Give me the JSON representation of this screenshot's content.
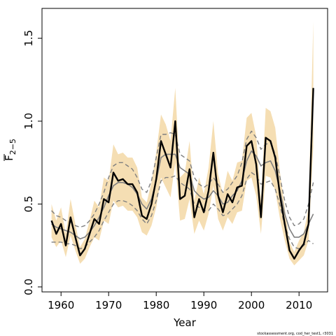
{
  "chart_data": {
    "type": "line",
    "xlabel": "Year",
    "ylabel_main": "F",
    "ylabel_sub": "2−5",
    "xlim": [
      1956,
      2016
    ],
    "ylim": [
      -0.03,
      1.68
    ],
    "xticks": [
      1960,
      1970,
      1980,
      1990,
      2000,
      2010
    ],
    "yticks": [
      0.0,
      0.5,
      1.0,
      1.5
    ],
    "ytick_labels": [
      "0.0",
      "0.5",
      "1.0",
      "1.5"
    ],
    "years": [
      1958,
      1959,
      1960,
      1961,
      1962,
      1963,
      1964,
      1965,
      1966,
      1967,
      1968,
      1969,
      1970,
      1971,
      1972,
      1973,
      1974,
      1975,
      1976,
      1977,
      1978,
      1979,
      1980,
      1981,
      1982,
      1983,
      1984,
      1985,
      1986,
      1987,
      1988,
      1989,
      1990,
      1991,
      1992,
      1993,
      1994,
      1995,
      1996,
      1997,
      1998,
      1999,
      2000,
      2001,
      2002,
      2003,
      2004,
      2005,
      2006,
      2007,
      2008,
      2009,
      2010,
      2011,
      2012,
      2013
    ],
    "series": [
      {
        "role": "estimate",
        "values": [
          0.4,
          0.32,
          0.38,
          0.25,
          0.42,
          0.3,
          0.19,
          0.23,
          0.32,
          0.41,
          0.38,
          0.53,
          0.51,
          0.69,
          0.64,
          0.65,
          0.62,
          0.62,
          0.57,
          0.43,
          0.41,
          0.5,
          0.65,
          0.88,
          0.8,
          0.72,
          1.0,
          0.53,
          0.55,
          0.71,
          0.42,
          0.53,
          0.45,
          0.58,
          0.81,
          0.55,
          0.45,
          0.56,
          0.51,
          0.6,
          0.61,
          0.85,
          0.88,
          0.74,
          0.42,
          0.9,
          0.88,
          0.78,
          0.55,
          0.38,
          0.22,
          0.17,
          0.22,
          0.26,
          0.38,
          1.2
        ],
        "color": "#000000"
      },
      {
        "role": "ci-band-lower",
        "values": [
          0.3,
          0.24,
          0.28,
          0.18,
          0.31,
          0.22,
          0.14,
          0.17,
          0.24,
          0.3,
          0.28,
          0.4,
          0.38,
          0.52,
          0.48,
          0.49,
          0.46,
          0.46,
          0.42,
          0.33,
          0.31,
          0.37,
          0.48,
          0.66,
          0.6,
          0.54,
          0.75,
          0.4,
          0.41,
          0.53,
          0.32,
          0.4,
          0.34,
          0.44,
          0.61,
          0.41,
          0.34,
          0.42,
          0.38,
          0.45,
          0.46,
          0.64,
          0.66,
          0.55,
          0.32,
          0.67,
          0.66,
          0.58,
          0.41,
          0.28,
          0.17,
          0.13,
          0.16,
          0.19,
          0.28,
          0.85
        ],
        "color": "#f5deb3"
      },
      {
        "role": "ci-band-upper",
        "values": [
          0.5,
          0.4,
          0.48,
          0.32,
          0.53,
          0.38,
          0.24,
          0.29,
          0.4,
          0.52,
          0.48,
          0.66,
          0.64,
          0.86,
          0.8,
          0.81,
          0.78,
          0.78,
          0.72,
          0.54,
          0.51,
          0.63,
          0.81,
          1.04,
          0.98,
          0.88,
          1.2,
          0.66,
          0.69,
          0.88,
          0.52,
          0.66,
          0.56,
          0.72,
          1.0,
          0.68,
          0.56,
          0.7,
          0.64,
          0.75,
          0.76,
          1.02,
          1.05,
          0.91,
          0.52,
          1.08,
          1.06,
          0.96,
          0.69,
          0.48,
          0.27,
          0.21,
          0.28,
          0.33,
          0.48,
          1.6
        ],
        "color": "#f5deb3"
      },
      {
        "role": "smooth-mean",
        "values": [
          0.38,
          0.36,
          0.35,
          0.34,
          0.33,
          0.31,
          0.29,
          0.3,
          0.33,
          0.37,
          0.42,
          0.48,
          0.55,
          0.61,
          0.63,
          0.63,
          0.62,
          0.6,
          0.56,
          0.5,
          0.47,
          0.53,
          0.64,
          0.78,
          0.8,
          0.8,
          0.8,
          0.72,
          0.7,
          0.68,
          0.58,
          0.55,
          0.53,
          0.54,
          0.58,
          0.55,
          0.5,
          0.51,
          0.55,
          0.58,
          0.64,
          0.76,
          0.82,
          0.79,
          0.73,
          0.75,
          0.76,
          0.7,
          0.58,
          0.44,
          0.35,
          0.3,
          0.3,
          0.32,
          0.38,
          0.44
        ],
        "color": "#7f7f7f"
      },
      {
        "role": "smooth-upper",
        "values": [
          0.46,
          0.43,
          0.42,
          0.4,
          0.39,
          0.37,
          0.36,
          0.37,
          0.4,
          0.44,
          0.5,
          0.57,
          0.66,
          0.73,
          0.75,
          0.75,
          0.73,
          0.71,
          0.66,
          0.59,
          0.57,
          0.64,
          0.78,
          0.92,
          0.92,
          0.93,
          0.92,
          0.8,
          0.78,
          0.76,
          0.66,
          0.62,
          0.6,
          0.62,
          0.66,
          0.62,
          0.57,
          0.59,
          0.63,
          0.67,
          0.75,
          0.89,
          0.94,
          0.9,
          0.83,
          0.86,
          0.87,
          0.8,
          0.66,
          0.52,
          0.42,
          0.37,
          0.38,
          0.41,
          0.5,
          0.63
        ],
        "color": "#7f7f7f"
      },
      {
        "role": "smooth-lower",
        "values": [
          0.27,
          0.27,
          0.27,
          0.26,
          0.26,
          0.25,
          0.23,
          0.24,
          0.27,
          0.3,
          0.34,
          0.4,
          0.45,
          0.5,
          0.52,
          0.52,
          0.51,
          0.49,
          0.46,
          0.41,
          0.38,
          0.43,
          0.52,
          0.64,
          0.66,
          0.66,
          0.67,
          0.63,
          0.61,
          0.59,
          0.5,
          0.48,
          0.46,
          0.46,
          0.5,
          0.47,
          0.43,
          0.44,
          0.47,
          0.5,
          0.55,
          0.65,
          0.69,
          0.67,
          0.62,
          0.63,
          0.64,
          0.59,
          0.49,
          0.37,
          0.29,
          0.24,
          0.23,
          0.25,
          0.28,
          0.26
        ],
        "color": "#7f7f7f"
      }
    ]
  },
  "footnote": "stockassessment.org, cod_her_test1, r3031"
}
